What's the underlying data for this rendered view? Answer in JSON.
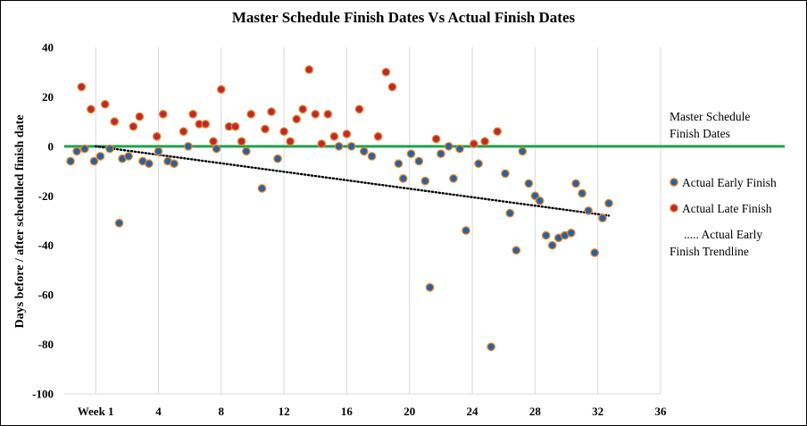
{
  "chart_data": {
    "type": "scatter",
    "title": "Master Schedule Finish Dates Vs Actual Finish Dates",
    "xlabel": "",
    "ylabel": "Days before  / after scheduled finish date",
    "xlim": [
      -2,
      36
    ],
    "ylim": [
      -100,
      40
    ],
    "x_ticks": [
      {
        "value": 0,
        "label": "Week 1"
      },
      {
        "value": 4,
        "label": "4"
      },
      {
        "value": 8,
        "label": "8"
      },
      {
        "value": 12,
        "label": "12"
      },
      {
        "value": 16,
        "label": "16"
      },
      {
        "value": 20,
        "label": "20"
      },
      {
        "value": 24,
        "label": "24"
      },
      {
        "value": 28,
        "label": "28"
      },
      {
        "value": 32,
        "label": "32"
      },
      {
        "value": 36,
        "label": "36"
      }
    ],
    "y_ticks": [
      40,
      20,
      0,
      -20,
      -40,
      -60,
      -80,
      -100
    ],
    "grid": "vertical",
    "legend_position": "right",
    "baseline": {
      "name": "Master Schedule Finish Dates",
      "y": 0,
      "color": "#22a14d"
    },
    "series": [
      {
        "name": "Actual Early Finish",
        "color": "#2e5f9e",
        "edge_color": "#e08a2e",
        "points": [
          [
            -1.6,
            -6
          ],
          [
            -1.2,
            -2
          ],
          [
            -0.7,
            -1
          ],
          [
            -0.1,
            -6
          ],
          [
            0.3,
            -4
          ],
          [
            0.9,
            -1
          ],
          [
            1.5,
            -31
          ],
          [
            1.7,
            -5
          ],
          [
            2.1,
            -4
          ],
          [
            3.0,
            -6
          ],
          [
            3.4,
            -7
          ],
          [
            4.0,
            -2
          ],
          [
            4.6,
            -6
          ],
          [
            5.0,
            -7
          ],
          [
            5.9,
            0
          ],
          [
            7.7,
            -1
          ],
          [
            9.6,
            -2
          ],
          [
            10.6,
            -17
          ],
          [
            11.6,
            -5
          ],
          [
            15.5,
            0
          ],
          [
            16.3,
            0
          ],
          [
            17.1,
            -2
          ],
          [
            17.6,
            -4
          ],
          [
            19.3,
            -7
          ],
          [
            19.6,
            -13
          ],
          [
            20.1,
            -3
          ],
          [
            20.6,
            -6
          ],
          [
            21.0,
            -14
          ],
          [
            21.3,
            -57
          ],
          [
            22.0,
            -3
          ],
          [
            22.5,
            0
          ],
          [
            22.8,
            -13
          ],
          [
            23.2,
            -1
          ],
          [
            23.6,
            -34
          ],
          [
            24.4,
            -7
          ],
          [
            25.2,
            -81
          ],
          [
            26.1,
            -11
          ],
          [
            26.4,
            -27
          ],
          [
            26.8,
            -42
          ],
          [
            27.2,
            -2
          ],
          [
            27.6,
            -15
          ],
          [
            28.0,
            -20
          ],
          [
            28.3,
            -22
          ],
          [
            28.7,
            -36
          ],
          [
            29.1,
            -40
          ],
          [
            29.5,
            -37
          ],
          [
            29.9,
            -36
          ],
          [
            30.3,
            -35
          ],
          [
            30.6,
            -15
          ],
          [
            31.0,
            -19
          ],
          [
            31.4,
            -26
          ],
          [
            31.8,
            -43
          ],
          [
            32.3,
            -29
          ],
          [
            32.7,
            -23
          ]
        ]
      },
      {
        "name": "Actual Late Finish",
        "color": "#c0282d",
        "edge_color": "#e08a2e",
        "points": [
          [
            -0.9,
            24
          ],
          [
            -0.3,
            15
          ],
          [
            0.6,
            17
          ],
          [
            1.2,
            10
          ],
          [
            2.4,
            8
          ],
          [
            2.8,
            12
          ],
          [
            3.9,
            4
          ],
          [
            4.3,
            13
          ],
          [
            5.6,
            6
          ],
          [
            6.2,
            13
          ],
          [
            6.6,
            9
          ],
          [
            7.0,
            9
          ],
          [
            7.5,
            2
          ],
          [
            8.0,
            23
          ],
          [
            8.5,
            8
          ],
          [
            8.9,
            8
          ],
          [
            9.3,
            2
          ],
          [
            9.9,
            13
          ],
          [
            10.8,
            7
          ],
          [
            11.2,
            14
          ],
          [
            12.0,
            6
          ],
          [
            12.4,
            2
          ],
          [
            12.8,
            11
          ],
          [
            13.2,
            15
          ],
          [
            13.6,
            31
          ],
          [
            14.0,
            13
          ],
          [
            14.4,
            1
          ],
          [
            14.8,
            13
          ],
          [
            15.2,
            4
          ],
          [
            16.0,
            5
          ],
          [
            16.8,
            15
          ],
          [
            18.0,
            4
          ],
          [
            18.5,
            30
          ],
          [
            18.9,
            24
          ],
          [
            21.7,
            3
          ],
          [
            24.1,
            1
          ],
          [
            24.8,
            2
          ],
          [
            25.6,
            6
          ]
        ]
      }
    ],
    "trendline": {
      "name": "Actual Early Finish Trendline",
      "style": "dotted",
      "x": [
        0,
        32.7
      ],
      "y": [
        0,
        -28
      ]
    },
    "legend": [
      {
        "label_lines": [
          "Master Schedule",
          "Finish Dates"
        ]
      },
      {
        "label_lines": [
          "Actual Early Finish"
        ]
      },
      {
        "label_lines": [
          "Actual Late Finish"
        ]
      },
      {
        "label_lines": [
          ".....  Actual Early",
          "Finish Trendline"
        ]
      }
    ]
  }
}
